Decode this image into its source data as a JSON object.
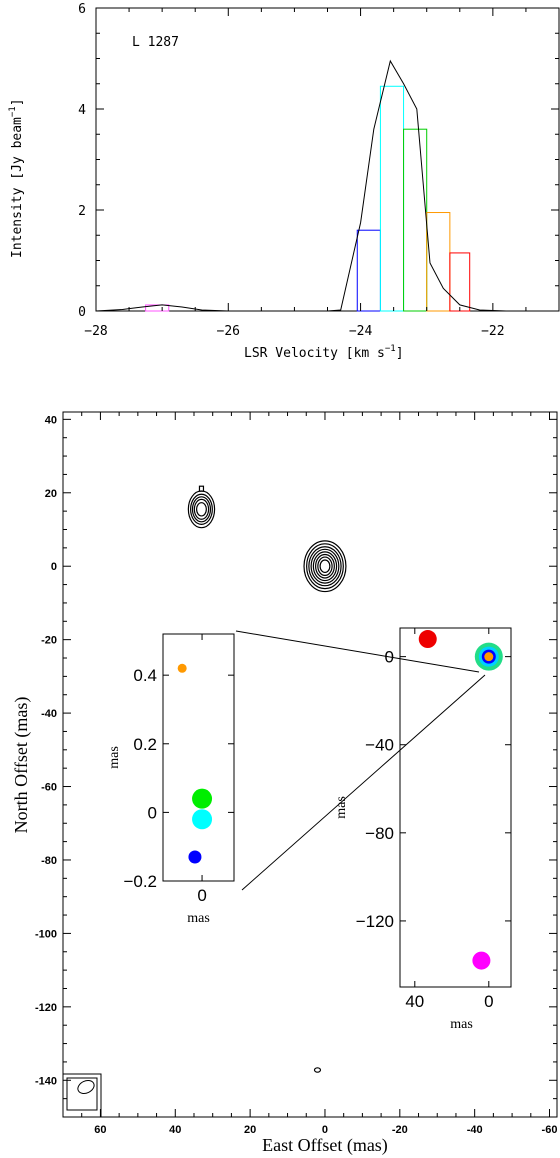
{
  "chart_data": [
    {
      "type": "bar",
      "annotation": "L 1287",
      "xlabel": "LSR Velocity [km s",
      "xlabel_sup": "−1",
      "xlabel_end": "]",
      "ylabel": "Intensity [Jy beam",
      "ylabel_sup": "−1",
      "ylabel_end": "]",
      "xlim": [
        -28,
        -21
      ],
      "ylim": [
        0,
        6
      ],
      "xticks": [
        "−28",
        "−26",
        "−24",
        "−22"
      ],
      "xtick_values": [
        -28,
        -26,
        -24,
        -22
      ],
      "yticks": [
        "0",
        "2",
        "4",
        "6"
      ],
      "ytick_values": [
        0,
        2,
        4,
        6
      ],
      "bars": [
        {
          "x0": -27.25,
          "x1": -26.9,
          "value": 0.12,
          "color": "#ff55ff"
        },
        {
          "x0": -24.05,
          "x1": -23.7,
          "value": 1.6,
          "color": "#0000ff"
        },
        {
          "x0": -23.7,
          "x1": -23.35,
          "value": 4.45,
          "color": "#00ffff"
        },
        {
          "x0": -23.35,
          "x1": -23.0,
          "value": 3.6,
          "color": "#00cc00"
        },
        {
          "x0": -23.0,
          "x1": -22.65,
          "value": 1.95,
          "color": "#ff9900"
        },
        {
          "x0": -22.65,
          "x1": -22.35,
          "value": 1.15,
          "color": "#ff0000"
        }
      ],
      "line": {
        "x": [
          -28,
          -27.6,
          -27.3,
          -27.0,
          -26.7,
          -26.4,
          -26.0,
          -25.5,
          -25.0,
          -24.5,
          -24.3,
          -24.0,
          -23.8,
          -23.55,
          -23.35,
          -23.15,
          -22.95,
          -22.75,
          -22.5,
          -22.2,
          -21.8,
          -21.0
        ],
        "y": [
          0.0,
          0.03,
          0.08,
          0.12,
          0.08,
          0.02,
          0.0,
          0.0,
          0.0,
          0.0,
          0.02,
          1.75,
          3.6,
          4.95,
          4.5,
          4.0,
          0.95,
          0.45,
          0.12,
          0.02,
          0.0,
          0.0
        ],
        "color": "#000000"
      }
    },
    {
      "type": "scatter",
      "xlabel": "East Offset (mas)",
      "ylabel": "North Offset (mas)",
      "xlim": [
        70,
        -62
      ],
      "ylim": [
        -150,
        42
      ],
      "xticks": [
        "60",
        "40",
        "20",
        "0",
        "-20",
        "-40",
        "-60"
      ],
      "xtick_values": [
        60,
        40,
        20,
        0,
        -20,
        -40,
        -60
      ],
      "yticks": [
        "40",
        "20",
        "0",
        "-20",
        "-40",
        "-60",
        "-80",
        "-100",
        "-120",
        "-140"
      ],
      "ytick_values": [
        40,
        20,
        0,
        -20,
        -40,
        -60,
        -80,
        -100,
        -120,
        -140
      ],
      "contours": [
        {
          "x": 33,
          "y": 15.5,
          "levels": [
            [
              3.5,
              5.0
            ],
            [
              2.9,
              4.1
            ],
            [
              2.4,
              3.4
            ],
            [
              1.9,
              2.7
            ],
            [
              1.3,
              1.8
            ]
          ]
        },
        {
          "x": 0,
          "y": 0,
          "levels": [
            [
              5.6,
              6.9
            ],
            [
              4.9,
              6.1
            ],
            [
              4.3,
              5.3
            ],
            [
              3.7,
              4.6
            ],
            [
              3.1,
              3.9
            ],
            [
              2.5,
              3.2
            ],
            [
              1.9,
              2.5
            ],
            [
              1.3,
              1.7
            ]
          ]
        },
        {
          "x": 2.0,
          "y": -137.2,
          "levels": [
            [
              0.8,
              0.6
            ]
          ]
        }
      ],
      "beam": {
        "x": 66,
        "y": -147
      },
      "inset_right": {
        "xlim": [
          48,
          -12
        ],
        "ylim": [
          -150,
          13
        ],
        "xticks": [
          "40",
          "0"
        ],
        "xtick_values": [
          40,
          0
        ],
        "yticks": [
          "0",
          "−40",
          "−80",
          "−120"
        ],
        "ytick_values": [
          0,
          -40,
          -80,
          -120
        ],
        "xlabel": "mas",
        "ylabel": "mas",
        "points": [
          {
            "x": 33,
            "y": 8,
            "r": 9,
            "color": "#ee0000"
          },
          {
            "x": 0,
            "y": 0,
            "r": 14,
            "color": "#22dd88"
          },
          {
            "x": 0,
            "y": 0,
            "r": 10,
            "color": "#00d0ff"
          },
          {
            "x": 0,
            "y": 0,
            "r": 7,
            "color": "#0000ff"
          },
          {
            "x": 0,
            "y": 0,
            "r": 4.5,
            "color": "#ff9900"
          },
          {
            "x": 4,
            "y": -138,
            "r": 9,
            "color": "#ff00ff"
          }
        ]
      },
      "inset_left": {
        "xlim": [
          0.55,
          -0.45
        ],
        "ylim": [
          -0.2,
          0.52
        ],
        "xticks": [
          "0"
        ],
        "xtick_values": [
          0
        ],
        "yticks": [
          "0.4",
          "0.2",
          "0",
          "−0.2"
        ],
        "ytick_values": [
          0.4,
          0.2,
          0,
          -0.2
        ],
        "xlabel": "mas",
        "ylabel": "mas",
        "points": [
          {
            "x": 0.28,
            "y": 0.42,
            "r": 4.5,
            "color": "#ff9900"
          },
          {
            "x": 0.0,
            "y": 0.04,
            "r": 10,
            "color": "#00ee00"
          },
          {
            "x": 0.0,
            "y": -0.02,
            "r": 10,
            "color": "#00ffff"
          },
          {
            "x": 0.1,
            "y": -0.13,
            "r": 6.5,
            "color": "#0000ff"
          }
        ]
      }
    }
  ]
}
